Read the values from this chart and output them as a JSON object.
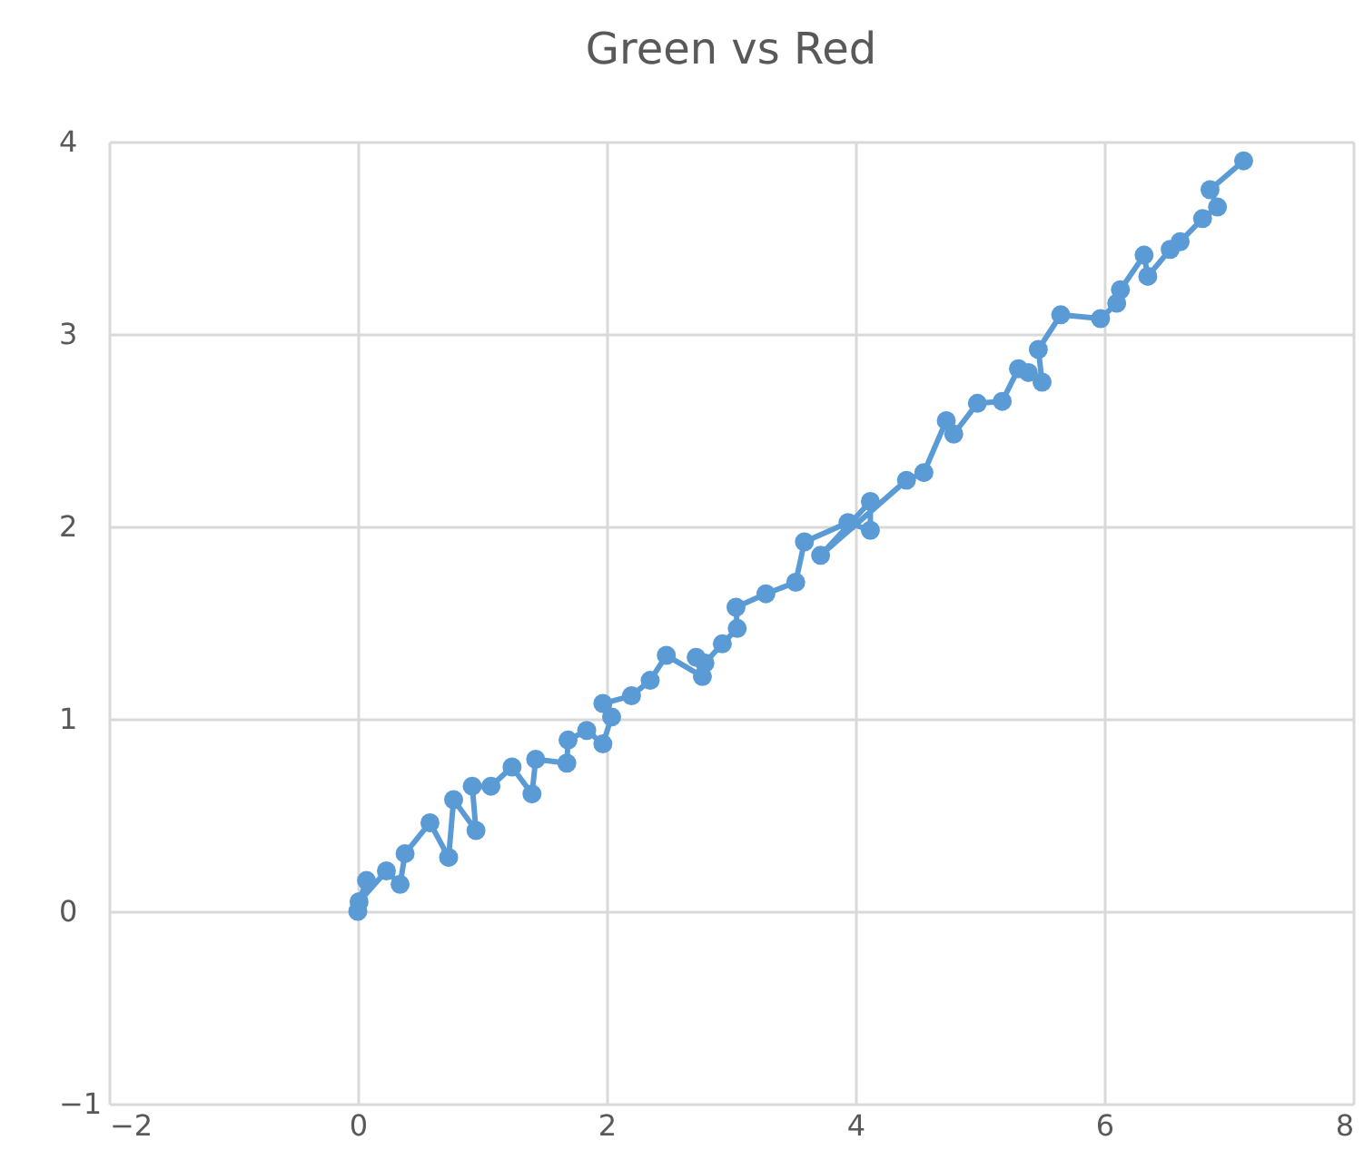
{
  "chart_data": {
    "type": "line",
    "title": "Green vs Red",
    "marker": "circle",
    "grid": true,
    "xlim": [
      -2,
      8
    ],
    "xticks": [
      -2,
      0,
      2,
      4,
      6,
      8
    ],
    "ylim": [
      -1,
      4
    ],
    "yticks": [
      -1,
      0,
      1,
      2,
      3,
      4
    ],
    "series": [
      {
        "color": "#5b9bd5",
        "x": [
          0.0,
          0.07,
          0.01,
          0.23,
          0.34,
          0.38,
          0.58,
          0.73,
          0.77,
          0.95,
          0.92,
          1.07,
          1.24,
          1.4,
          1.43,
          1.68,
          1.69,
          1.84,
          1.97,
          2.04,
          1.97,
          2.2,
          2.35,
          2.48,
          2.77,
          2.72,
          2.79,
          2.93,
          3.05,
          3.04,
          3.28,
          3.52,
          3.59,
          3.94,
          4.12,
          4.12,
          3.72,
          4.41,
          4.55,
          4.73,
          4.79,
          4.98,
          5.18,
          5.31,
          5.39,
          5.5,
          5.47,
          5.65,
          5.97,
          6.1,
          6.13,
          6.32,
          6.35,
          6.53,
          6.61,
          6.79,
          6.91,
          6.85,
          7.12
        ],
        "values": [
          0.0,
          0.16,
          0.05,
          0.21,
          0.14,
          0.3,
          0.46,
          0.28,
          0.58,
          0.42,
          0.65,
          0.65,
          0.75,
          0.61,
          0.79,
          0.77,
          0.89,
          0.94,
          0.87,
          1.01,
          1.08,
          1.12,
          1.2,
          1.33,
          1.22,
          1.32,
          1.29,
          1.39,
          1.47,
          1.58,
          1.65,
          1.71,
          1.92,
          2.02,
          1.98,
          2.13,
          1.85,
          2.24,
          2.28,
          2.55,
          2.48,
          2.64,
          2.65,
          2.82,
          2.8,
          2.75,
          2.92,
          3.1,
          3.08,
          3.16,
          3.23,
          3.41,
          3.3,
          3.44,
          3.48,
          3.6,
          3.66,
          3.75,
          3.9
        ]
      }
    ]
  }
}
